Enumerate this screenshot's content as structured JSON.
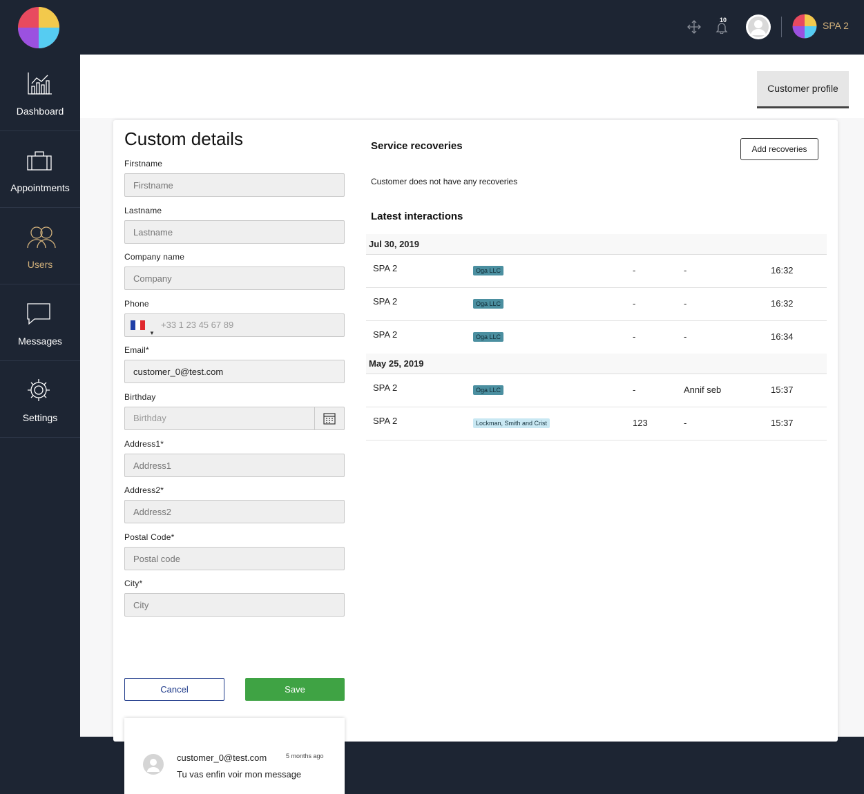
{
  "header": {
    "notification_count": "10",
    "account_name": "SPA 2"
  },
  "sidebar": {
    "items": [
      {
        "label": "Dashboard",
        "icon": "dashboard-icon"
      },
      {
        "label": "Appointments",
        "icon": "calendar-icon"
      },
      {
        "label": "Users",
        "icon": "users-icon"
      },
      {
        "label": "Messages",
        "icon": "message-icon"
      },
      {
        "label": "Settings",
        "icon": "gear-icon"
      }
    ],
    "active": "Users"
  },
  "tabs": {
    "customer_profile": "Customer profile"
  },
  "form": {
    "title": "Custom details",
    "firstname": {
      "label": "Firstname",
      "placeholder": "Firstname",
      "value": ""
    },
    "lastname": {
      "label": "Lastname",
      "placeholder": "Lastname",
      "value": ""
    },
    "company": {
      "label": "Company name",
      "placeholder": "Company",
      "value": ""
    },
    "phone": {
      "label": "Phone",
      "placeholder": "+33 1 23 45 67 89",
      "value": ""
    },
    "email": {
      "label": "Email*",
      "value": "customer_0@test.com"
    },
    "birthday": {
      "label": "Birthday",
      "placeholder": "Birthday",
      "value": ""
    },
    "address1": {
      "label": "Address1*",
      "placeholder": "Address1",
      "value": ""
    },
    "address2": {
      "label": "Address2*",
      "placeholder": "Address2",
      "value": ""
    },
    "postal": {
      "label": "Postal Code*",
      "placeholder": "Postal code",
      "value": ""
    },
    "city": {
      "label": "City*",
      "placeholder": "City",
      "value": ""
    },
    "cancel": "Cancel",
    "save": "Save"
  },
  "comment": {
    "author": "customer_0@test.com",
    "time": "5 months ago",
    "text": "Tu vas enfin voir mon message"
  },
  "recoveries": {
    "title": "Service recoveries",
    "add_button": "Add recoveries",
    "empty": "Customer does not have any recoveries"
  },
  "interactions": {
    "title": "Latest interactions",
    "groups": [
      {
        "date": "Jul 30, 2019",
        "rows": [
          {
            "place": "SPA 2",
            "company": "Oga LLC",
            "c3": "-",
            "c4": "-",
            "time": "16:32"
          },
          {
            "place": "SPA 2",
            "company": "Oga LLC",
            "c3": "-",
            "c4": "-",
            "time": "16:32"
          },
          {
            "place": "SPA 2",
            "company": "Oga LLC",
            "c3": "-",
            "c4": "-",
            "time": "16:34"
          }
        ]
      },
      {
        "date": "May 25, 2019",
        "rows": [
          {
            "place": "SPA 2",
            "company": "Oga LLC",
            "c3": "-",
            "c4": "Annif seb",
            "time": "15:37"
          },
          {
            "place": "SPA 2",
            "company": "Lockman, Smith and Crist",
            "c3": "123",
            "c4": "-",
            "time": "15:37"
          }
        ]
      }
    ]
  }
}
